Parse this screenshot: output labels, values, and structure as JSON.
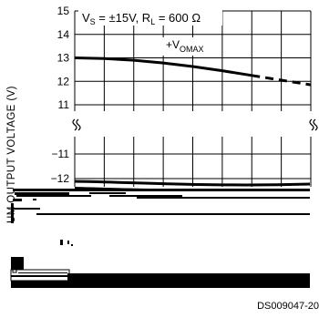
{
  "chart_data": {
    "type": "line",
    "ylabel": "UM OUTPUT VOLTAGE (V)",
    "yticks_upper": [
      15,
      14,
      13,
      12,
      11
    ],
    "yticks_lower": [
      -11,
      -12
    ],
    "annotation": {
      "vs_prefix": "V",
      "vs_sub": "S",
      "vs_text": " = ±15V, R",
      "rl_sub": "L",
      "rl_text": " = 600 Ω"
    },
    "series_label": {
      "prefix": "+V",
      "sub": "OMAX"
    },
    "series": [
      {
        "x": [
          0,
          1,
          2,
          3,
          4,
          5,
          6,
          7,
          8
        ],
        "values": [
          13.0,
          12.97,
          12.9,
          12.78,
          12.63,
          12.45,
          12.25,
          12.05,
          11.85
        ],
        "dashed_from_index": 6
      }
    ],
    "grid": true
  },
  "footer": {
    "doc_id": "DS009047-20"
  }
}
